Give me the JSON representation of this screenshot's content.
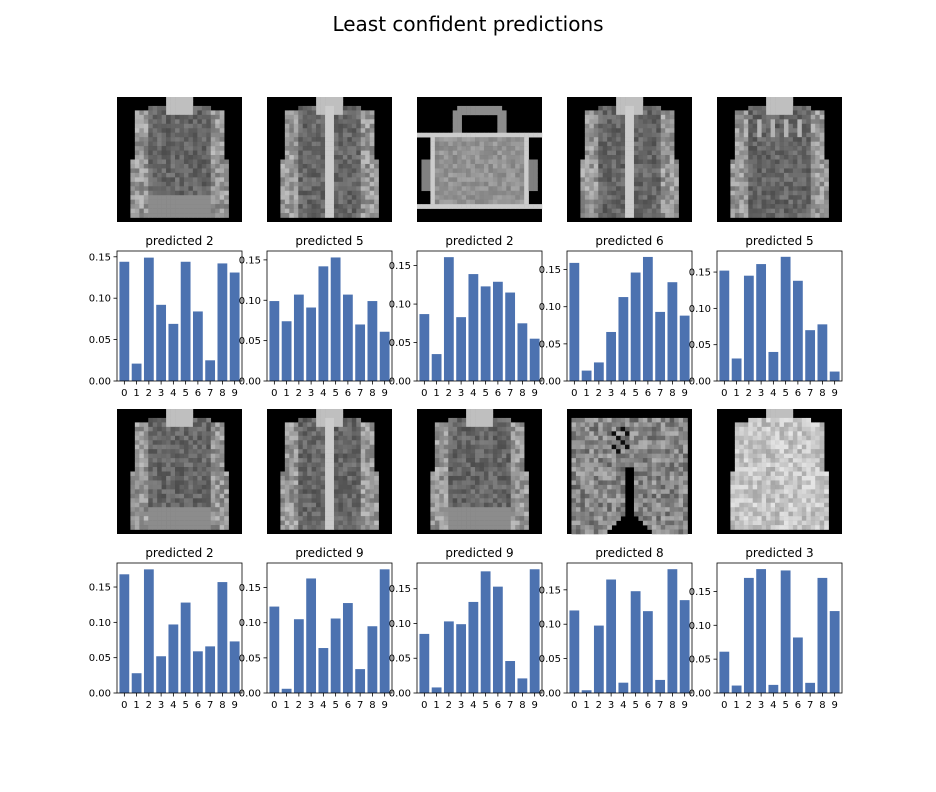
{
  "figure": {
    "suptitle": "Least confident predictions"
  },
  "colors": {
    "bar": "#4c72b0",
    "image_background": "#000000"
  },
  "chart_data": [
    {
      "type": "bar",
      "image": "long-sleeve top",
      "title": "predicted 2",
      "categories": [
        "0",
        "1",
        "2",
        "3",
        "4",
        "5",
        "6",
        "7",
        "8",
        "9"
      ],
      "values": [
        0.144,
        0.021,
        0.149,
        0.092,
        0.069,
        0.144,
        0.084,
        0.025,
        0.142,
        0.131
      ],
      "ylim": [
        0,
        0.157
      ],
      "yticks": [
        "0.00",
        "0.05",
        "0.10",
        "0.15"
      ]
    },
    {
      "type": "bar",
      "image": "jacket",
      "title": "predicted 5",
      "categories": [
        "0",
        "1",
        "2",
        "3",
        "4",
        "5",
        "6",
        "7",
        "8",
        "9"
      ],
      "values": [
        0.099,
        0.074,
        0.107,
        0.091,
        0.142,
        0.153,
        0.107,
        0.07,
        0.099,
        0.061
      ],
      "ylim": [
        0,
        0.161
      ],
      "yticks": [
        "0.00",
        "0.05",
        "0.10",
        "0.15"
      ]
    },
    {
      "type": "bar",
      "image": "bag",
      "title": "predicted 2",
      "categories": [
        "0",
        "1",
        "2",
        "3",
        "4",
        "5",
        "6",
        "7",
        "8",
        "9"
      ],
      "values": [
        0.087,
        0.035,
        0.161,
        0.083,
        0.139,
        0.123,
        0.129,
        0.115,
        0.075,
        0.055
      ],
      "ylim": [
        0,
        0.169
      ],
      "yticks": [
        "0.00",
        "0.05",
        "0.10",
        "0.15"
      ]
    },
    {
      "type": "bar",
      "image": "jacket",
      "title": "predicted 6",
      "categories": [
        "0",
        "1",
        "2",
        "3",
        "4",
        "5",
        "6",
        "7",
        "8",
        "9"
      ],
      "values": [
        0.159,
        0.014,
        0.025,
        0.066,
        0.113,
        0.146,
        0.167,
        0.093,
        0.133,
        0.088
      ],
      "ylim": [
        0,
        0.175
      ],
      "yticks": [
        "0.00",
        "0.05",
        "0.10",
        "0.15"
      ]
    },
    {
      "type": "bar",
      "image": "sweater",
      "title": "predicted 5",
      "categories": [
        "0",
        "1",
        "2",
        "3",
        "4",
        "5",
        "6",
        "7",
        "8",
        "9"
      ],
      "values": [
        0.152,
        0.031,
        0.145,
        0.161,
        0.04,
        0.171,
        0.138,
        0.07,
        0.078,
        0.013
      ],
      "ylim": [
        0,
        0.179
      ],
      "yticks": [
        "0.00",
        "0.05",
        "0.10",
        "0.15"
      ]
    },
    {
      "type": "bar",
      "image": "long-sleeve top",
      "title": "predicted 2",
      "categories": [
        "0",
        "1",
        "2",
        "3",
        "4",
        "5",
        "6",
        "7",
        "8",
        "9"
      ],
      "values": [
        0.168,
        0.028,
        0.175,
        0.052,
        0.097,
        0.128,
        0.059,
        0.066,
        0.157,
        0.073
      ],
      "ylim": [
        0,
        0.184
      ],
      "yticks": [
        "0.00",
        "0.05",
        "0.10",
        "0.15"
      ]
    },
    {
      "type": "bar",
      "image": "jacket",
      "title": "predicted 9",
      "categories": [
        "0",
        "1",
        "2",
        "3",
        "4",
        "5",
        "6",
        "7",
        "8",
        "9"
      ],
      "values": [
        0.123,
        0.006,
        0.105,
        0.163,
        0.064,
        0.106,
        0.128,
        0.034,
        0.095,
        0.176
      ],
      "ylim": [
        0,
        0.185
      ],
      "yticks": [
        "0.00",
        "0.05",
        "0.10",
        "0.15"
      ]
    },
    {
      "type": "bar",
      "image": "long-sleeve top",
      "title": "predicted 9",
      "categories": [
        "0",
        "1",
        "2",
        "3",
        "4",
        "5",
        "6",
        "7",
        "8",
        "9"
      ],
      "values": [
        0.085,
        0.008,
        0.103,
        0.099,
        0.131,
        0.175,
        0.153,
        0.046,
        0.021,
        0.178
      ],
      "ylim": [
        0,
        0.187
      ],
      "yticks": [
        "0.00",
        "0.05",
        "0.10",
        "0.15"
      ]
    },
    {
      "type": "bar",
      "image": "trousers",
      "title": "predicted 8",
      "categories": [
        "0",
        "1",
        "2",
        "3",
        "4",
        "5",
        "6",
        "7",
        "8",
        "9"
      ],
      "values": [
        0.12,
        0.004,
        0.098,
        0.165,
        0.015,
        0.148,
        0.119,
        0.019,
        0.18,
        0.135
      ],
      "ylim": [
        0,
        0.189
      ],
      "yticks": [
        "0.00",
        "0.05",
        "0.10",
        "0.15"
      ]
    },
    {
      "type": "bar",
      "image": "pullover",
      "title": "predicted 3",
      "categories": [
        "0",
        "1",
        "2",
        "3",
        "4",
        "5",
        "6",
        "7",
        "8",
        "9"
      ],
      "values": [
        0.061,
        0.011,
        0.17,
        0.183,
        0.012,
        0.181,
        0.082,
        0.015,
        0.17,
        0.121
      ],
      "ylim": [
        0,
        0.192
      ],
      "yticks": [
        "0.00",
        "0.05",
        "0.10",
        "0.15"
      ]
    }
  ]
}
